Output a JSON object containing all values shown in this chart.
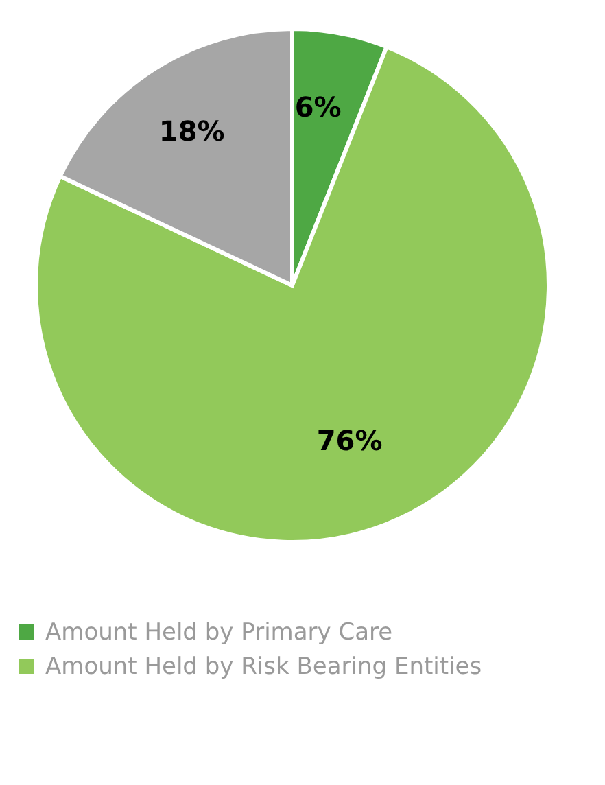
{
  "chart_data": {
    "type": "pie",
    "categories": [
      "Amount Held by Primary Care",
      "Amount Held by Risk Bearing Entities",
      null
    ],
    "values": [
      6,
      76,
      18
    ],
    "colors": [
      "#4ea844",
      "#92c95a",
      "#a6a6a6"
    ],
    "value_labels": [
      "6%",
      "76%",
      "18%"
    ],
    "legend": "bottom"
  }
}
